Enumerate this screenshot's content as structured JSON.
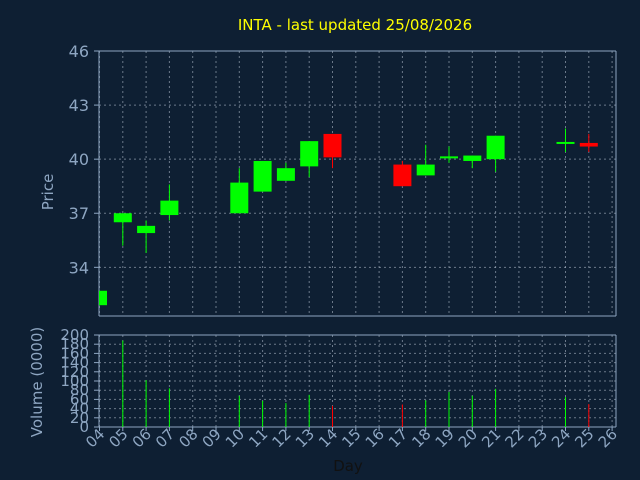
{
  "chart_data": [
    {
      "type": "candlestick",
      "title": "INTA - last updated 25/08/2026",
      "ylabel": "Price",
      "ylim": [
        31.3,
        46
      ],
      "yticks": [
        "34",
        "37",
        "40",
        "43",
        "46"
      ],
      "grid": true,
      "x": [
        "04",
        "05",
        "06",
        "07",
        "08",
        "09",
        "10",
        "11",
        "12",
        "13",
        "14",
        "15",
        "16",
        "17",
        "18",
        "19",
        "20",
        "21",
        "22",
        "23",
        "24",
        "25",
        "26"
      ],
      "candles": [
        {
          "day": "04",
          "open": 31.9,
          "close": 32.7,
          "high": 32.7,
          "low": 31.9
        },
        {
          "day": "05",
          "open": 36.5,
          "close": 37.0,
          "high": 37.0,
          "low": 35.2
        },
        {
          "day": "06",
          "open": 35.9,
          "close": 36.3,
          "high": 36.6,
          "low": 34.8
        },
        {
          "day": "07",
          "open": 36.9,
          "close": 37.7,
          "high": 38.6,
          "low": 36.6
        },
        {
          "day": "10",
          "open": 37.0,
          "close": 38.7,
          "high": 39.5,
          "low": 37.0
        },
        {
          "day": "11",
          "open": 38.2,
          "close": 39.9,
          "high": 39.9,
          "low": 38.2
        },
        {
          "day": "12",
          "open": 38.8,
          "close": 39.5,
          "high": 39.8,
          "low": 38.8
        },
        {
          "day": "13",
          "open": 39.6,
          "close": 41.0,
          "high": 41.0,
          "low": 39.0
        },
        {
          "day": "14",
          "open": 41.4,
          "close": 40.1,
          "high": 41.4,
          "low": 39.5
        },
        {
          "day": "17",
          "open": 39.7,
          "close": 38.5,
          "high": 39.9,
          "low": 38.5
        },
        {
          "day": "18",
          "open": 39.1,
          "close": 39.7,
          "high": 40.8,
          "low": 39.1
        },
        {
          "day": "19",
          "open": 40.0,
          "close": 40.1,
          "high": 40.7,
          "low": 39.8
        },
        {
          "day": "20",
          "open": 39.9,
          "close": 40.2,
          "high": 40.2,
          "low": 39.5
        },
        {
          "day": "21",
          "open": 40.0,
          "close": 41.3,
          "high": 41.3,
          "low": 39.3
        },
        {
          "day": "24",
          "open": 40.9,
          "close": 40.9,
          "high": 41.7,
          "low": 40.4
        },
        {
          "day": "25",
          "open": 40.9,
          "close": 40.7,
          "high": 41.4,
          "low": 40.4
        }
      ]
    },
    {
      "type": "bar",
      "ylabel": "Volume (0000)",
      "xlabel": "Day",
      "ylim": [
        0,
        200
      ],
      "yticks": [
        "0",
        "20",
        "40",
        "60",
        "80",
        "100",
        "120",
        "140",
        "160",
        "180",
        "200"
      ],
      "grid": true,
      "x": [
        "04",
        "05",
        "06",
        "07",
        "08",
        "09",
        "10",
        "11",
        "12",
        "13",
        "14",
        "15",
        "16",
        "17",
        "18",
        "19",
        "20",
        "21",
        "22",
        "23",
        "24",
        "25",
        "26"
      ],
      "bars": [
        {
          "day": "05",
          "value": 188,
          "direction": "up"
        },
        {
          "day": "06",
          "value": 102,
          "direction": "up"
        },
        {
          "day": "07",
          "value": 84,
          "direction": "up"
        },
        {
          "day": "10",
          "value": 68,
          "direction": "up"
        },
        {
          "day": "11",
          "value": 57,
          "direction": "up"
        },
        {
          "day": "12",
          "value": 52,
          "direction": "up"
        },
        {
          "day": "13",
          "value": 70,
          "direction": "up"
        },
        {
          "day": "14",
          "value": 46,
          "direction": "down"
        },
        {
          "day": "17",
          "value": 49,
          "direction": "down"
        },
        {
          "day": "18",
          "value": 58,
          "direction": "up"
        },
        {
          "day": "19",
          "value": 76,
          "direction": "up"
        },
        {
          "day": "20",
          "value": 68,
          "direction": "up"
        },
        {
          "day": "21",
          "value": 83,
          "direction": "up"
        },
        {
          "day": "24",
          "value": 65,
          "direction": "up"
        },
        {
          "day": "25",
          "value": 50,
          "direction": "down"
        }
      ]
    }
  ],
  "colors": {
    "background": "#0e1f33",
    "axis": "#8ea6c2",
    "title": "#ffff00",
    "label": "#8ea6c2",
    "up": "#00ff00",
    "down": "#ff0000",
    "grid": "#b8c4d2"
  }
}
